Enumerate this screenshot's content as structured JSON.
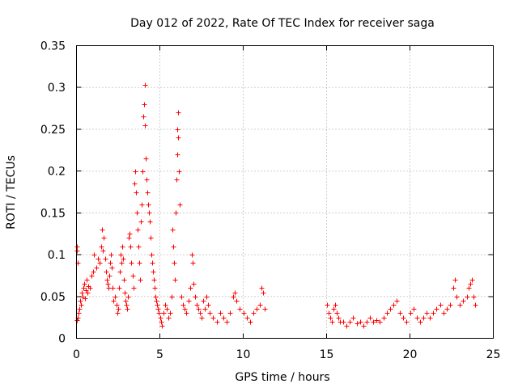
{
  "chart_data": {
    "type": "scatter",
    "title": "Day 012 of 2022, Rate Of TEC Index for receiver saga",
    "xlabel": "GPS time / hours",
    "ylabel": "ROTI / TECUs",
    "xlim": [
      0,
      25
    ],
    "ylim": [
      0,
      0.35
    ],
    "xticks": [
      "0",
      "5",
      "10",
      "15",
      "20",
      "25"
    ],
    "yticks": [
      "0",
      "0.05",
      "0.1",
      "0.15",
      "0.2",
      "0.25",
      "0.3",
      "0.35"
    ],
    "grid": true,
    "marker": "+",
    "color": "#ff0000",
    "series": [
      {
        "points": [
          [
            0.0,
            0.022
          ],
          [
            0.0,
            0.11
          ],
          [
            0.02,
            0.105
          ],
          [
            0.05,
            0.09
          ],
          [
            0.08,
            0.025
          ],
          [
            0.1,
            0.03
          ],
          [
            0.15,
            0.035
          ],
          [
            0.2,
            0.045
          ],
          [
            0.25,
            0.04
          ],
          [
            0.3,
            0.055
          ],
          [
            0.35,
            0.05
          ],
          [
            0.4,
            0.06
          ],
          [
            0.45,
            0.065
          ],
          [
            0.5,
            0.048
          ],
          [
            0.55,
            0.058
          ],
          [
            0.6,
            0.07
          ],
          [
            0.65,
            0.055
          ],
          [
            0.7,
            0.062
          ],
          [
            0.8,
            0.06
          ],
          [
            0.9,
            0.075
          ],
          [
            1.0,
            0.08
          ],
          [
            1.05,
            0.1
          ],
          [
            1.2,
            0.085
          ],
          [
            1.3,
            0.095
          ],
          [
            1.4,
            0.09
          ],
          [
            1.5,
            0.11
          ],
          [
            1.55,
            0.13
          ],
          [
            1.6,
            0.105
          ],
          [
            1.65,
            0.12
          ],
          [
            1.7,
            0.095
          ],
          [
            1.75,
            0.08
          ],
          [
            1.8,
            0.07
          ],
          [
            1.85,
            0.065
          ],
          [
            1.9,
            0.06
          ],
          [
            1.95,
            0.075
          ],
          [
            2.0,
            0.09
          ],
          [
            2.05,
            0.1
          ],
          [
            2.1,
            0.085
          ],
          [
            2.15,
            0.06
          ],
          [
            2.2,
            0.045
          ],
          [
            2.3,
            0.05
          ],
          [
            2.4,
            0.04
          ],
          [
            2.45,
            0.03
          ],
          [
            2.5,
            0.035
          ],
          [
            2.55,
            0.06
          ],
          [
            2.6,
            0.08
          ],
          [
            2.65,
            0.1
          ],
          [
            2.7,
            0.09
          ],
          [
            2.75,
            0.11
          ],
          [
            2.8,
            0.095
          ],
          [
            2.85,
            0.07
          ],
          [
            2.9,
            0.055
          ],
          [
            2.95,
            0.045
          ],
          [
            3.0,
            0.04
          ],
          [
            3.05,
            0.035
          ],
          [
            3.1,
            0.05
          ],
          [
            3.15,
            0.12
          ],
          [
            3.2,
            0.125
          ],
          [
            3.25,
            0.11
          ],
          [
            3.3,
            0.09
          ],
          [
            3.35,
            0.075
          ],
          [
            3.4,
            0.06
          ],
          [
            3.45,
            0.185
          ],
          [
            3.5,
            0.2
          ],
          [
            3.55,
            0.175
          ],
          [
            3.6,
            0.15
          ],
          [
            3.65,
            0.13
          ],
          [
            3.7,
            0.11
          ],
          [
            3.75,
            0.09
          ],
          [
            3.8,
            0.07
          ],
          [
            3.85,
            0.14
          ],
          [
            3.9,
            0.16
          ],
          [
            3.95,
            0.2
          ],
          [
            4.0,
            0.265
          ],
          [
            4.05,
            0.28
          ],
          [
            4.08,
            0.303
          ],
          [
            4.1,
            0.255
          ],
          [
            4.15,
            0.215
          ],
          [
            4.2,
            0.19
          ],
          [
            4.25,
            0.175
          ],
          [
            4.3,
            0.16
          ],
          [
            4.35,
            0.15
          ],
          [
            4.4,
            0.14
          ],
          [
            4.45,
            0.12
          ],
          [
            4.5,
            0.1
          ],
          [
            4.55,
            0.09
          ],
          [
            4.6,
            0.08
          ],
          [
            4.65,
            0.07
          ],
          [
            4.7,
            0.06
          ],
          [
            4.75,
            0.05
          ],
          [
            4.8,
            0.045
          ],
          [
            4.85,
            0.04
          ],
          [
            4.9,
            0.035
          ],
          [
            4.95,
            0.03
          ],
          [
            5.0,
            0.025
          ],
          [
            5.05,
            0.02
          ],
          [
            5.1,
            0.015
          ],
          [
            5.2,
            0.03
          ],
          [
            5.3,
            0.04
          ],
          [
            5.4,
            0.035
          ],
          [
            5.5,
            0.025
          ],
          [
            5.6,
            0.03
          ],
          [
            5.7,
            0.05
          ],
          [
            5.75,
            0.13
          ],
          [
            5.8,
            0.11
          ],
          [
            5.85,
            0.09
          ],
          [
            5.9,
            0.07
          ],
          [
            5.95,
            0.15
          ],
          [
            6.0,
            0.19
          ],
          [
            6.02,
            0.22
          ],
          [
            6.05,
            0.25
          ],
          [
            6.08,
            0.27
          ],
          [
            6.1,
            0.24
          ],
          [
            6.15,
            0.2
          ],
          [
            6.2,
            0.16
          ],
          [
            6.3,
            0.05
          ],
          [
            6.4,
            0.04
          ],
          [
            6.5,
            0.035
          ],
          [
            6.6,
            0.03
          ],
          [
            6.7,
            0.045
          ],
          [
            6.8,
            0.06
          ],
          [
            6.9,
            0.1
          ],
          [
            6.95,
            0.09
          ],
          [
            7.0,
            0.065
          ],
          [
            7.1,
            0.05
          ],
          [
            7.2,
            0.04
          ],
          [
            7.3,
            0.035
          ],
          [
            7.4,
            0.03
          ],
          [
            7.5,
            0.025
          ],
          [
            7.6,
            0.045
          ],
          [
            7.7,
            0.035
          ],
          [
            7.8,
            0.05
          ],
          [
            7.9,
            0.04
          ],
          [
            8.0,
            0.03
          ],
          [
            8.2,
            0.025
          ],
          [
            8.4,
            0.02
          ],
          [
            8.6,
            0.03
          ],
          [
            8.8,
            0.025
          ],
          [
            9.0,
            0.02
          ],
          [
            9.2,
            0.03
          ],
          [
            9.4,
            0.05
          ],
          [
            9.5,
            0.055
          ],
          [
            9.6,
            0.045
          ],
          [
            9.8,
            0.035
          ],
          [
            10.0,
            0.03
          ],
          [
            10.2,
            0.025
          ],
          [
            10.4,
            0.02
          ],
          [
            10.6,
            0.03
          ],
          [
            10.8,
            0.035
          ],
          [
            11.0,
            0.04
          ],
          [
            11.1,
            0.06
          ],
          [
            11.2,
            0.055
          ],
          [
            11.3,
            0.035
          ],
          [
            15.0,
            0.04
          ],
          [
            15.1,
            0.03
          ],
          [
            15.2,
            0.025
          ],
          [
            15.3,
            0.02
          ],
          [
            15.4,
            0.035
          ],
          [
            15.5,
            0.04
          ],
          [
            15.6,
            0.03
          ],
          [
            15.7,
            0.025
          ],
          [
            15.8,
            0.02
          ],
          [
            16.0,
            0.02
          ],
          [
            16.2,
            0.015
          ],
          [
            16.4,
            0.02
          ],
          [
            16.6,
            0.025
          ],
          [
            16.8,
            0.018
          ],
          [
            17.0,
            0.02
          ],
          [
            17.2,
            0.015
          ],
          [
            17.4,
            0.02
          ],
          [
            17.6,
            0.025
          ],
          [
            17.8,
            0.02
          ],
          [
            18.0,
            0.022
          ],
          [
            18.2,
            0.02
          ],
          [
            18.4,
            0.025
          ],
          [
            18.6,
            0.03
          ],
          [
            18.8,
            0.035
          ],
          [
            19.0,
            0.04
          ],
          [
            19.2,
            0.045
          ],
          [
            19.4,
            0.03
          ],
          [
            19.6,
            0.025
          ],
          [
            19.8,
            0.02
          ],
          [
            20.0,
            0.03
          ],
          [
            20.2,
            0.035
          ],
          [
            20.4,
            0.025
          ],
          [
            20.6,
            0.02
          ],
          [
            20.8,
            0.025
          ],
          [
            21.0,
            0.03
          ],
          [
            21.2,
            0.025
          ],
          [
            21.4,
            0.03
          ],
          [
            21.6,
            0.035
          ],
          [
            21.8,
            0.04
          ],
          [
            22.0,
            0.03
          ],
          [
            22.2,
            0.035
          ],
          [
            22.4,
            0.04
          ],
          [
            22.6,
            0.06
          ],
          [
            22.7,
            0.07
          ],
          [
            22.8,
            0.05
          ],
          [
            23.0,
            0.04
          ],
          [
            23.2,
            0.045
          ],
          [
            23.4,
            0.05
          ],
          [
            23.5,
            0.06
          ],
          [
            23.6,
            0.065
          ],
          [
            23.7,
            0.07
          ],
          [
            23.8,
            0.05
          ],
          [
            23.9,
            0.04
          ]
        ]
      }
    ]
  }
}
